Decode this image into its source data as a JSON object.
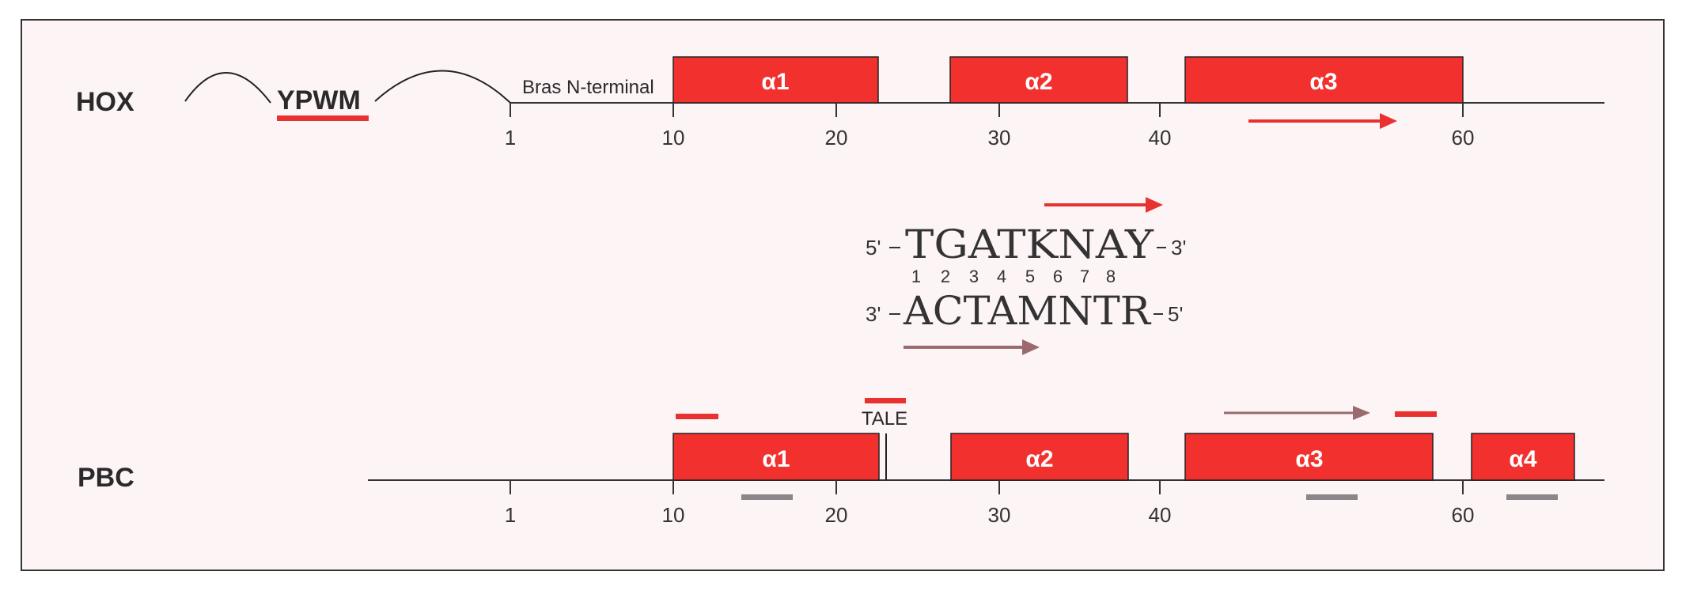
{
  "hox": {
    "label": "HOX",
    "motif": "YPWM",
    "region_label": "Bras N-terminal",
    "helices": [
      {
        "label": "α1",
        "start": 10,
        "end": 22.5
      },
      {
        "label": "α2",
        "start": 27.5,
        "end": 38
      },
      {
        "label": "α3",
        "start": 41.5,
        "end": 60
      }
    ],
    "ticks": [
      "1",
      "10",
      "20",
      "30",
      "40",
      "60"
    ],
    "arrow": {
      "start": 46,
      "end": 55,
      "color": "#e8322f"
    }
  },
  "dna": {
    "top_left": "5'",
    "top_seq": "TGATKNAY",
    "top_right": "3'",
    "positions": [
      "1",
      "2",
      "3",
      "4",
      "5",
      "6",
      "7",
      "8"
    ],
    "bottom_left": "3'",
    "bottom_seq": "ACTAMNTR",
    "bottom_right": "5'"
  },
  "pbc": {
    "label": "PBC",
    "tale_label": "TALE",
    "helices": [
      {
        "label": "α1",
        "start": 10,
        "end": 22.5
      },
      {
        "label": "α2",
        "start": 27.5,
        "end": 38
      },
      {
        "label": "α3",
        "start": 41.5,
        "end": 58
      },
      {
        "label": "α4",
        "start": 60.5,
        "end": 66
      }
    ],
    "ticks": [
      "1",
      "10",
      "20",
      "30",
      "40",
      "60"
    ],
    "arrow": {
      "start": 45,
      "end": 54,
      "color": "#9a6a6e"
    }
  },
  "colors": {
    "helix": "#f2302e",
    "red_bar": "#e8322f",
    "gray_bar": "#8c8589",
    "axis": "#333333"
  }
}
